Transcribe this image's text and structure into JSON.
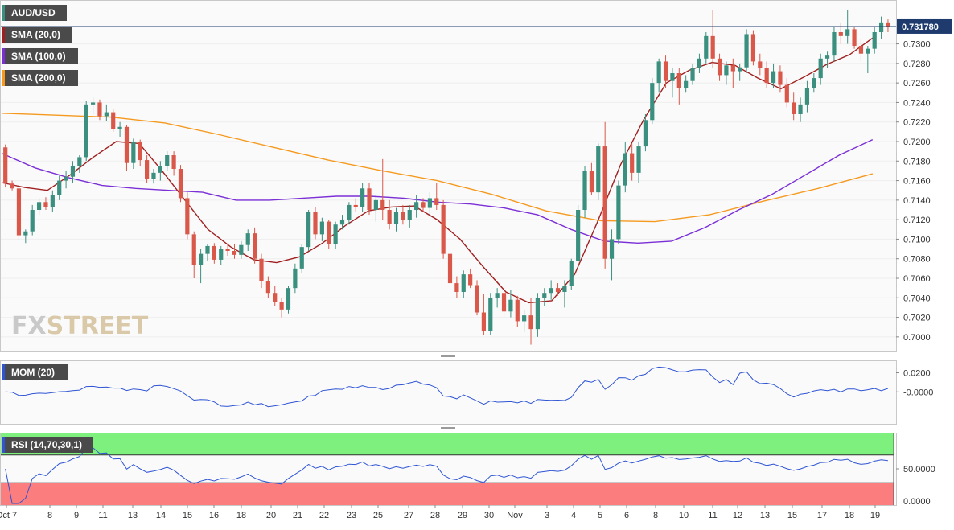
{
  "legend": {
    "symbol": "AUD/USD",
    "sma20": "SMA (20,0)",
    "sma100": "SMA (100,0)",
    "sma200": "SMA (200,0)",
    "mom": "MOM (20)",
    "rsi": "RSI (14,70,30,1)"
  },
  "colors": {
    "up": "#3a8f7f",
    "down": "#d9584a",
    "sma20": "#a02020",
    "sma100": "#7b2fd6",
    "sma200": "#f59a1f",
    "mom_line": "#2f55d4",
    "rsi_line": "#2f55d4",
    "overbought_zone": "#7ef07e",
    "oversold_zone": "#fb7d7d"
  },
  "logo": {
    "fx": "FX",
    "rest": "STREET"
  },
  "chart_data": [
    {
      "type": "candlestick",
      "pane": "price",
      "last_price": "0.731780",
      "ylim": [
        0.699,
        0.734
      ],
      "y_ticks": [
        "0.7300",
        "0.7280",
        "0.7260",
        "0.7240",
        "0.7220",
        "0.7200",
        "0.7180",
        "0.7160",
        "0.7140",
        "0.7120",
        "0.7100",
        "0.7080",
        "0.7060",
        "0.7040",
        "0.7020",
        "0.7000"
      ],
      "x_ticks": [
        "Oct 7",
        "8",
        "9",
        "11",
        "13",
        "14",
        "15",
        "16",
        "18",
        "20",
        "21",
        "22",
        "23",
        "25",
        "27",
        "28",
        "29",
        "30",
        "Nov",
        "3",
        "4",
        "5",
        "6",
        "8",
        "10",
        "11",
        "12",
        "13",
        "15",
        "17",
        "18",
        "19"
      ],
      "candles": [
        [
          0.7194,
          0.7197,
          0.7153,
          0.7157
        ],
        [
          0.7157,
          0.716,
          0.715,
          0.7152
        ],
        [
          0.7152,
          0.7155,
          0.7098,
          0.7104
        ],
        [
          0.7104,
          0.711,
          0.7096,
          0.7108
        ],
        [
          0.7108,
          0.7135,
          0.7104,
          0.713
        ],
        [
          0.713,
          0.7142,
          0.7125,
          0.7138
        ],
        [
          0.7138,
          0.7143,
          0.713,
          0.7133
        ],
        [
          0.7133,
          0.715,
          0.7128,
          0.7145
        ],
        [
          0.7145,
          0.7165,
          0.714,
          0.716
        ],
        [
          0.716,
          0.717,
          0.7152,
          0.7164
        ],
        [
          0.7164,
          0.718,
          0.7158,
          0.7175
        ],
        [
          0.7175,
          0.7186,
          0.7168,
          0.7184
        ],
        [
          0.7184,
          0.7242,
          0.718,
          0.7238
        ],
        [
          0.7238,
          0.7245,
          0.7228,
          0.724
        ],
        [
          0.724,
          0.7243,
          0.7222,
          0.7226
        ],
        [
          0.7226,
          0.7238,
          0.7221,
          0.723
        ],
        [
          0.723,
          0.7233,
          0.721,
          0.7213
        ],
        [
          0.7213,
          0.722,
          0.7205,
          0.7215
        ],
        [
          0.7215,
          0.7217,
          0.717,
          0.7178
        ],
        [
          0.7178,
          0.7203,
          0.7172,
          0.72
        ],
        [
          0.72,
          0.7202,
          0.7175,
          0.7181
        ],
        [
          0.7181,
          0.7186,
          0.7158,
          0.7162
        ],
        [
          0.7162,
          0.7172,
          0.7157,
          0.7168
        ],
        [
          0.7168,
          0.718,
          0.716,
          0.7175
        ],
        [
          0.7175,
          0.719,
          0.717,
          0.7186
        ],
        [
          0.7186,
          0.719,
          0.7165,
          0.7172
        ],
        [
          0.7172,
          0.7176,
          0.7138,
          0.7142
        ],
        [
          0.7142,
          0.7148,
          0.71,
          0.7105
        ],
        [
          0.7105,
          0.7108,
          0.706,
          0.7074
        ],
        [
          0.7074,
          0.709,
          0.7055,
          0.7085
        ],
        [
          0.7085,
          0.7095,
          0.7078,
          0.7093
        ],
        [
          0.7093,
          0.7096,
          0.7075,
          0.7079
        ],
        [
          0.7079,
          0.7093,
          0.7074,
          0.709
        ],
        [
          0.709,
          0.7095,
          0.7083,
          0.7088
        ],
        [
          0.7088,
          0.7095,
          0.708,
          0.7084
        ],
        [
          0.7084,
          0.7098,
          0.708,
          0.7094
        ],
        [
          0.7094,
          0.711,
          0.7088,
          0.7106
        ],
        [
          0.7106,
          0.7112,
          0.7075,
          0.708
        ],
        [
          0.708,
          0.7085,
          0.705,
          0.7057
        ],
        [
          0.7057,
          0.7062,
          0.704,
          0.7045
        ],
        [
          0.7045,
          0.7052,
          0.7032,
          0.7036
        ],
        [
          0.7036,
          0.704,
          0.702,
          0.7028
        ],
        [
          0.7028,
          0.7052,
          0.7024,
          0.705
        ],
        [
          0.705,
          0.7075,
          0.7045,
          0.707
        ],
        [
          0.707,
          0.7095,
          0.7065,
          0.7092
        ],
        [
          0.7092,
          0.713,
          0.7088,
          0.7128
        ],
        [
          0.7128,
          0.7133,
          0.71,
          0.7105
        ],
        [
          0.7105,
          0.7122,
          0.7098,
          0.7118
        ],
        [
          0.7118,
          0.712,
          0.709,
          0.7095
        ],
        [
          0.7095,
          0.7118,
          0.709,
          0.7115
        ],
        [
          0.7115,
          0.7125,
          0.711,
          0.712
        ],
        [
          0.712,
          0.7138,
          0.7115,
          0.7135
        ],
        [
          0.7135,
          0.7142,
          0.7128,
          0.7133
        ],
        [
          0.7133,
          0.7158,
          0.7128,
          0.7152
        ],
        [
          0.7152,
          0.7158,
          0.7125,
          0.713
        ],
        [
          0.713,
          0.7145,
          0.7118,
          0.714
        ],
        [
          0.714,
          0.7182,
          0.712,
          0.713
        ],
        [
          0.713,
          0.714,
          0.711,
          0.7116
        ],
        [
          0.7116,
          0.7132,
          0.7108,
          0.7128
        ],
        [
          0.7128,
          0.7135,
          0.7115,
          0.712
        ],
        [
          0.712,
          0.7135,
          0.7112,
          0.713
        ],
        [
          0.713,
          0.7145,
          0.7122,
          0.7138
        ],
        [
          0.7138,
          0.7142,
          0.7128,
          0.7132
        ],
        [
          0.7132,
          0.7148,
          0.7125,
          0.7142
        ],
        [
          0.7142,
          0.7158,
          0.713,
          0.7135
        ],
        [
          0.7135,
          0.714,
          0.708,
          0.7085
        ],
        [
          0.7085,
          0.709,
          0.7045,
          0.7055
        ],
        [
          0.7055,
          0.7062,
          0.704,
          0.7046
        ],
        [
          0.7046,
          0.7068,
          0.704,
          0.7064
        ],
        [
          0.7064,
          0.707,
          0.705,
          0.7053
        ],
        [
          0.7053,
          0.7058,
          0.7022,
          0.7025
        ],
        [
          0.7025,
          0.7044,
          0.7002,
          0.7006
        ],
        [
          0.7006,
          0.7045,
          0.7002,
          0.704
        ],
        [
          0.704,
          0.705,
          0.703,
          0.7045
        ],
        [
          0.7045,
          0.7052,
          0.702,
          0.7026
        ],
        [
          0.7026,
          0.7048,
          0.702,
          0.7038
        ],
        [
          0.7038,
          0.7042,
          0.701,
          0.7016
        ],
        [
          0.7016,
          0.7028,
          0.7005,
          0.7022
        ],
        [
          0.7022,
          0.704,
          0.6992,
          0.7008
        ],
        [
          0.7008,
          0.7045,
          0.7,
          0.704
        ],
        [
          0.704,
          0.705,
          0.7032,
          0.7045
        ],
        [
          0.7045,
          0.7058,
          0.7038,
          0.705
        ],
        [
          0.705,
          0.7055,
          0.7042,
          0.7046
        ],
        [
          0.7046,
          0.7058,
          0.703,
          0.7052
        ],
        [
          0.7052,
          0.708,
          0.7048,
          0.7078
        ],
        [
          0.7078,
          0.7135,
          0.7072,
          0.713
        ],
        [
          0.713,
          0.7175,
          0.7122,
          0.717
        ],
        [
          0.717,
          0.7178,
          0.7145,
          0.7148
        ],
        [
          0.7148,
          0.7198,
          0.714,
          0.7195
        ],
        [
          0.7195,
          0.722,
          0.707,
          0.708
        ],
        [
          0.708,
          0.711,
          0.7058,
          0.71
        ],
        [
          0.71,
          0.716,
          0.7095,
          0.7155
        ],
        [
          0.7155,
          0.72,
          0.7148,
          0.7188
        ],
        [
          0.7188,
          0.7198,
          0.716,
          0.7168
        ],
        [
          0.7168,
          0.72,
          0.7158,
          0.7195
        ],
        [
          0.7195,
          0.7228,
          0.719,
          0.7222
        ],
        [
          0.7222,
          0.7265,
          0.7218,
          0.726
        ],
        [
          0.726,
          0.7285,
          0.725,
          0.7282
        ],
        [
          0.7282,
          0.7288,
          0.7255,
          0.7262
        ],
        [
          0.7262,
          0.7275,
          0.7245,
          0.727
        ],
        [
          0.727,
          0.7275,
          0.7238,
          0.7255
        ],
        [
          0.7255,
          0.7268,
          0.725,
          0.7262
        ],
        [
          0.7262,
          0.728,
          0.7258,
          0.7275
        ],
        [
          0.7275,
          0.729,
          0.727,
          0.7285
        ],
        [
          0.7285,
          0.7312,
          0.728,
          0.7308
        ],
        [
          0.7308,
          0.7335,
          0.7275,
          0.7285
        ],
        [
          0.7285,
          0.729,
          0.7262,
          0.7268
        ],
        [
          0.7268,
          0.7282,
          0.7258,
          0.7278
        ],
        [
          0.7278,
          0.7285,
          0.7255,
          0.7272
        ],
        [
          0.7272,
          0.728,
          0.7262,
          0.7276
        ],
        [
          0.7276,
          0.7315,
          0.727,
          0.731
        ],
        [
          0.731,
          0.7314,
          0.7278,
          0.7282
        ],
        [
          0.7282,
          0.729,
          0.7268,
          0.7275
        ],
        [
          0.7275,
          0.7282,
          0.7255,
          0.726
        ],
        [
          0.726,
          0.728,
          0.7255,
          0.7272
        ],
        [
          0.7272,
          0.7278,
          0.725,
          0.7258
        ],
        [
          0.7258,
          0.7265,
          0.7235,
          0.724
        ],
        [
          0.724,
          0.725,
          0.7222,
          0.7228
        ],
        [
          0.7228,
          0.7245,
          0.722,
          0.7238
        ],
        [
          0.7238,
          0.7262,
          0.723,
          0.7255
        ],
        [
          0.7255,
          0.727,
          0.725,
          0.7265
        ],
        [
          0.7265,
          0.729,
          0.7258,
          0.7285
        ],
        [
          0.7285,
          0.7292,
          0.7275,
          0.7288
        ],
        [
          0.7288,
          0.7318,
          0.7282,
          0.7312
        ],
        [
          0.7312,
          0.7322,
          0.73,
          0.7308
        ],
        [
          0.7308,
          0.7335,
          0.73,
          0.7315
        ],
        [
          0.7315,
          0.7318,
          0.7295,
          0.7298
        ],
        [
          0.7298,
          0.7305,
          0.7282,
          0.729
        ],
        [
          0.729,
          0.7298,
          0.727,
          0.7295
        ],
        [
          0.7295,
          0.7318,
          0.729,
          0.7312
        ],
        [
          0.7312,
          0.7328,
          0.7305,
          0.7322
        ],
        [
          0.7322,
          0.7325,
          0.7312,
          0.7318
        ]
      ],
      "sma20": [
        0.7158,
        0.7153,
        0.715,
        0.7166,
        0.7184,
        0.72,
        0.7198,
        0.717,
        0.714,
        0.711,
        0.7092,
        0.7079,
        0.7076,
        0.7082,
        0.7096,
        0.7114,
        0.7129,
        0.7133,
        0.7134,
        0.712,
        0.71,
        0.7072,
        0.7046,
        0.7035,
        0.7037,
        0.7064,
        0.7118,
        0.7176,
        0.7222,
        0.726,
        0.7273,
        0.7281,
        0.7278,
        0.7265,
        0.7254,
        0.7266,
        0.7279,
        0.7289,
        0.7306
      ],
      "sma100": [
        0.7188,
        0.7173,
        0.7163,
        0.7155,
        0.7152,
        0.715,
        0.7148,
        0.714,
        0.714,
        0.7142,
        0.7144,
        0.7144,
        0.7142,
        0.7138,
        0.7136,
        0.7132,
        0.7125,
        0.711,
        0.7098,
        0.7096,
        0.7098,
        0.7112,
        0.713,
        0.7146,
        0.7166,
        0.7186,
        0.7202
      ],
      "sma200": [
        0.7229,
        0.7227,
        0.7225,
        0.7219,
        0.7207,
        0.7194,
        0.7181,
        0.717,
        0.716,
        0.7146,
        0.7129,
        0.7119,
        0.7118,
        0.7125,
        0.7139,
        0.7152,
        0.7167
      ],
      "mom_ticks": [
        "0.0200",
        "-0.0000"
      ],
      "rsi_ticks": [
        "50.0000",
        "0.0000"
      ]
    }
  ]
}
